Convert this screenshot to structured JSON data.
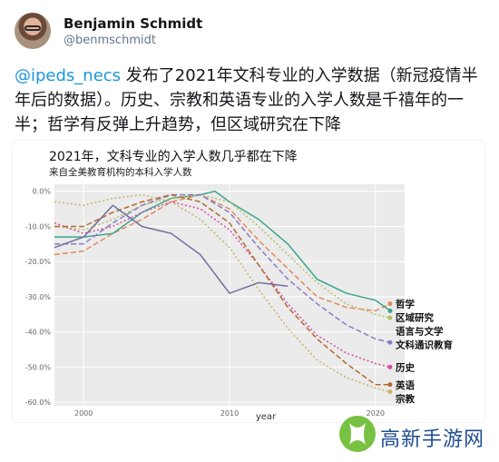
{
  "author": {
    "name": "Benjamin Schmidt",
    "handle": "@benmschmidt"
  },
  "tweet": {
    "mention": "@ipeds_necs",
    "text": " 发布了2021年文科专业的入学数据（新冠疫情半年后的数据）。历史、宗教和英语专业的入学人数是千禧年的一半；哲学有反弹上升趋势，但区域研究在下降"
  },
  "chart_data": {
    "type": "line",
    "title": "2021年，文科专业的入学人数几乎都在下降",
    "subtitle": "来自全美教育机构的本科入学人数",
    "xlabel": "year",
    "ylabel": "",
    "xlim": [
      1998,
      2022
    ],
    "ylim": [
      -61,
      2
    ],
    "x_ticks": [
      2000,
      2010,
      2020
    ],
    "y_ticks": [
      0,
      -10,
      -20,
      -30,
      -40,
      -50,
      -60
    ],
    "y_tick_labels": [
      "0.0%",
      "-10.0%",
      "-20.0%",
      "-30.0%",
      "-40.0%",
      "-50.0%",
      "-60.0%"
    ],
    "grid": true,
    "legend": "right-end labels",
    "series": [
      {
        "name": "哲学",
        "color": "#e08a5b",
        "dash": "dashed",
        "x": [
          1998,
          2000,
          2002,
          2004,
          2006,
          2008,
          2010,
          2012,
          2014,
          2016,
          2018,
          2020,
          2021
        ],
        "y": [
          -18,
          -17,
          -12,
          -8,
          -3,
          -1,
          -5,
          -14,
          -22,
          -30,
          -33,
          -34,
          -32
        ]
      },
      {
        "name": "区域研究",
        "color": "#3aa58a",
        "dash": "solid",
        "x": [
          1998,
          2000,
          2002,
          2004,
          2006,
          2008,
          2009,
          2010,
          2012,
          2014,
          2016,
          2018,
          2020,
          2021
        ],
        "y": [
          -13,
          -13,
          -12,
          -6,
          -2,
          -1,
          0,
          -3,
          -8,
          -15,
          -25,
          -29,
          -31,
          -34
        ]
      },
      {
        "name": "语言与文学",
        "color": "#b4c266",
        "dash": "dotted",
        "x": [
          1998,
          2000,
          2002,
          2004,
          2006,
          2008,
          2010,
          2012,
          2014,
          2016,
          2018,
          2020,
          2021
        ],
        "y": [
          -10,
          -11,
          -8,
          -4,
          -2,
          -1,
          -3,
          -10,
          -18,
          -26,
          -32,
          -35,
          -36
        ]
      },
      {
        "name": "文科通识教育",
        "color": "#8a7cc4",
        "dash": "dashed",
        "x": [
          1998,
          2000,
          2002,
          2004,
          2006,
          2008,
          2010,
          2012,
          2014,
          2016,
          2018,
          2020,
          2021
        ],
        "y": [
          -15,
          -15,
          -9,
          -4,
          -1,
          -1,
          -6,
          -16,
          -25,
          -32,
          -38,
          -42,
          -43
        ]
      },
      {
        "name": "历史",
        "color": "#d44da3",
        "dash": "dotted",
        "x": [
          1998,
          2000,
          2002,
          2004,
          2006,
          2008,
          2010,
          2012,
          2014,
          2016,
          2018,
          2020,
          2021
        ],
        "y": [
          -9,
          -12,
          -10,
          -6,
          -3,
          -5,
          -11,
          -21,
          -32,
          -41,
          -46,
          -49,
          -50
        ]
      },
      {
        "name": "英语",
        "color": "#b46a2f",
        "dash": "dashed",
        "x": [
          1998,
          2000,
          2002,
          2004,
          2006,
          2008,
          2010,
          2012,
          2014,
          2016,
          2018,
          2020,
          2021
        ],
        "y": [
          -10,
          -10,
          -6,
          -3,
          -1,
          -3,
          -9,
          -21,
          -33,
          -42,
          -49,
          -55,
          -55
        ]
      },
      {
        "name": "宗教",
        "color": "#c9b36a",
        "dash": "dotted",
        "x": [
          1998,
          2000,
          2002,
          2004,
          2006,
          2008,
          2010,
          2012,
          2014,
          2016,
          2018,
          2020,
          2021
        ],
        "y": [
          -3,
          -4,
          -2,
          -1,
          -3,
          -8,
          -16,
          -28,
          -39,
          -48,
          -53,
          -56,
          -57
        ]
      },
      {
        "name": "",
        "color": "#6f6f9e",
        "dash": "solid",
        "x": [
          1998,
          2000,
          2002,
          2004,
          2006,
          2008,
          2010,
          2012,
          2014
        ],
        "y": [
          -16,
          -13,
          -4,
          -10,
          -12,
          -18,
          -29,
          -26,
          -27
        ]
      }
    ]
  },
  "watermark": {
    "text": "高新手游网"
  },
  "colors": {
    "mention": "#1b95e0",
    "panel": "#ebebeb",
    "watermark_blue": "#1f4e8f",
    "watermark_green": "#78c142"
  }
}
